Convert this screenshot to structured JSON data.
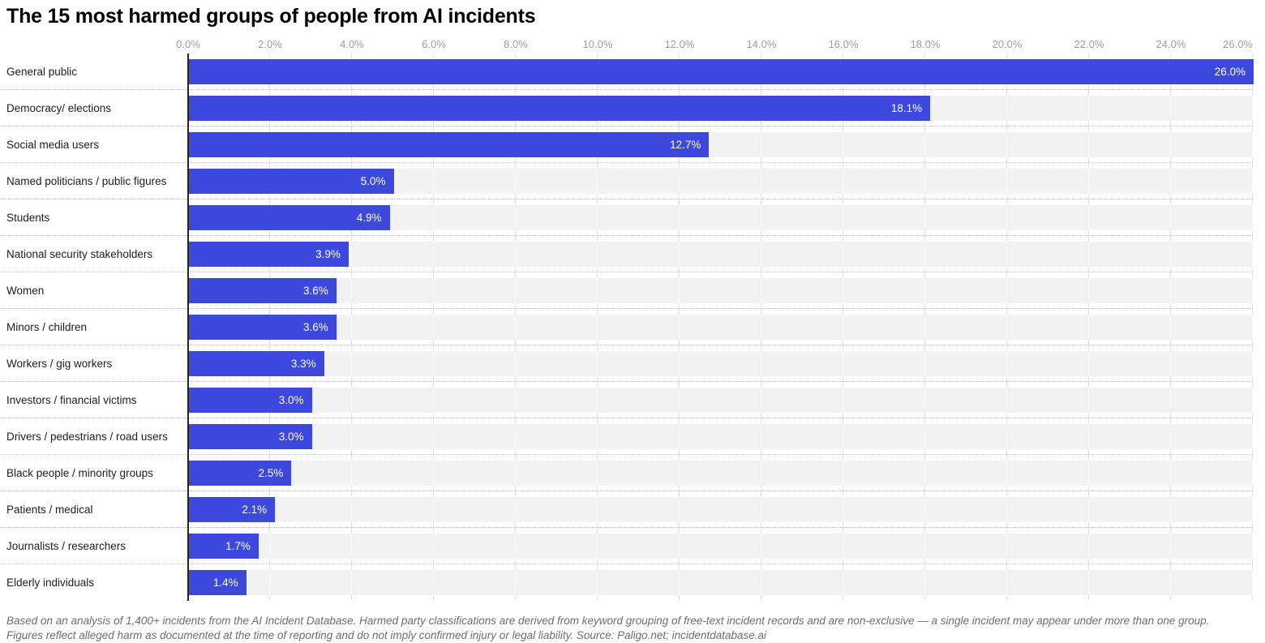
{
  "chart_data": {
    "type": "bar",
    "orientation": "horizontal",
    "title": "The 15 most harmed groups of people from AI incidents",
    "categories": [
      "General public",
      "Democracy/ elections",
      "Social media users",
      "Named politicians / public figures",
      "Students",
      "National security stakeholders",
      "Women",
      "Minors / children",
      "Workers / gig workers",
      "Investors / financial victims",
      "Drivers / pedestrians / road users",
      "Black people / minority groups",
      "Patients / medical",
      "Journalists / researchers",
      "Elderly individuals"
    ],
    "values": [
      26.0,
      18.1,
      12.7,
      5.0,
      4.9,
      3.9,
      3.6,
      3.6,
      3.3,
      3.0,
      3.0,
      2.5,
      2.1,
      1.7,
      1.4
    ],
    "value_labels": [
      "26.0%",
      "18.1%",
      "12.7%",
      "5.0%",
      "4.9%",
      "3.9%",
      "3.6%",
      "3.6%",
      "3.3%",
      "3.0%",
      "3.0%",
      "2.5%",
      "2.1%",
      "1.7%",
      "1.4%"
    ],
    "x_ticks": [
      "0.0%",
      "2.0%",
      "4.0%",
      "6.0%",
      "8.0%",
      "10.0%",
      "12.0%",
      "14.0%",
      "16.0%",
      "18.0%",
      "20.0%",
      "22.0%",
      "24.0%",
      "26.0%"
    ],
    "xlabel": "",
    "ylabel": "",
    "xlim": [
      0,
      26
    ],
    "grid": "vertical",
    "legend": "none",
    "bar_color": "#3d49dc",
    "track_color": "#f2f2f2",
    "value_label_color": "#ffffff"
  },
  "footer": {
    "line1": "Based on an analysis of 1,400+ incidents from the AI Incident Database. Harmed party classifications are derived from keyword grouping of free-text incident records and are non-exclusive — a single incident may appear under more than one group.",
    "line2": "Figures reflect alleged harm as documented at the time of reporting and do not imply confirmed injury or legal liability. Source: Paligo.net; incidentdatabase.ai"
  }
}
